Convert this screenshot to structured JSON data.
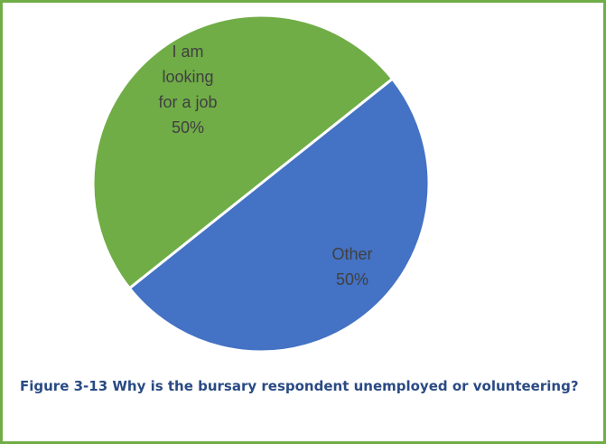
{
  "chart_data": {
    "type": "pie",
    "categories": [
      "I am looking for a job",
      "Other"
    ],
    "values": [
      50,
      50
    ],
    "data_labels": [
      [
        "I am",
        "looking",
        "for a job",
        "50%"
      ],
      [
        "Other",
        "50%"
      ]
    ],
    "colors": [
      "#70ad47",
      "#4472c4"
    ],
    "label_color": "#404040",
    "title": "",
    "legend": "none"
  },
  "caption": "Figure 3-13 Why is the bursary respondent unemployed or volunteering?",
  "colors": {
    "frame_border": "#70ad47",
    "caption_text": "#2a4a84",
    "slice_separator": "#ffffff"
  }
}
